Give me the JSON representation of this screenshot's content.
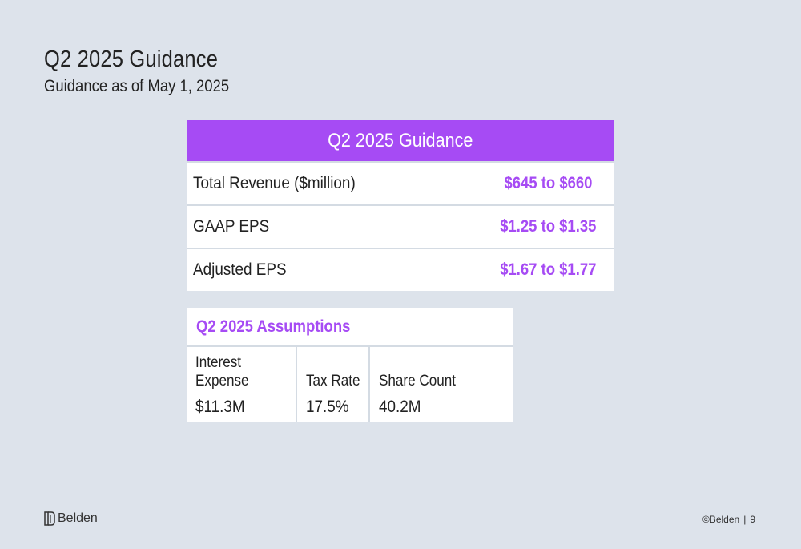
{
  "header": {
    "title": "Q2 2025 Guidance",
    "subtitle": "Guidance as of May 1, 2025"
  },
  "guidance": {
    "header": "Q2 2025 Guidance",
    "rows": [
      {
        "label": "Total Revenue ($million)",
        "value": "$645 to $660"
      },
      {
        "label": "GAAP EPS",
        "value": "$1.25 to $1.35"
      },
      {
        "label": "Adjusted EPS",
        "value": "$1.67 to $1.77"
      }
    ]
  },
  "assumptions": {
    "title": "Q2 2025 Assumptions",
    "columns": [
      {
        "label": "Interest Expense",
        "value": "$11.3M"
      },
      {
        "label": "Tax Rate",
        "value": "17.5%"
      },
      {
        "label": "Share Count",
        "value": "40.2M"
      }
    ]
  },
  "footer": {
    "logo_text": "Belden",
    "copyright": "©Belden",
    "separator": "|",
    "page_number": "9"
  },
  "colors": {
    "accent": "#a64bf4",
    "background": "#dde3eb"
  },
  "icons": {
    "logo": "belden-logo-icon"
  }
}
